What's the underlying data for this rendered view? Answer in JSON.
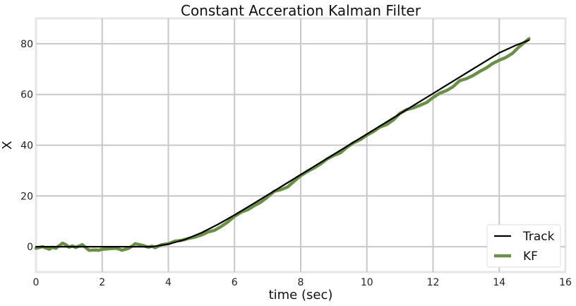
{
  "chart_data": {
    "type": "line",
    "title": "Constant Acceration Kalman Filter",
    "xlabel": "time (sec)",
    "ylabel": "X",
    "xlim": [
      0,
      16
    ],
    "ylim": [
      -10,
      90
    ],
    "xticks": [
      0,
      2,
      4,
      6,
      8,
      10,
      12,
      14,
      16
    ],
    "yticks": [
      0,
      20,
      40,
      60,
      80
    ],
    "xtick_labels": [
      "0",
      "2",
      "4",
      "6",
      "8",
      "10",
      "12",
      "14",
      "16"
    ],
    "ytick_labels": [
      "0",
      "20",
      "40",
      "60",
      "80"
    ],
    "grid": true,
    "legend_placement": "lower-right",
    "series": [
      {
        "name": "Track",
        "color": "#000000",
        "x": [
          0,
          0.5,
          1,
          1.5,
          2,
          2.5,
          3,
          3.5,
          4,
          4.5,
          5,
          5.5,
          6,
          6.5,
          7,
          7.5,
          8,
          8.5,
          9,
          9.5,
          10,
          10.5,
          11,
          11.5,
          12,
          12.5,
          13,
          13.5,
          14,
          14.5,
          14.9
        ],
        "values": [
          0,
          0,
          0,
          0,
          0,
          0,
          0,
          0,
          1,
          2.8,
          5.5,
          8.8,
          12.5,
          16.4,
          20.4,
          24.4,
          28.4,
          32.4,
          36.4,
          40.4,
          44.4,
          48.4,
          52.4,
          56.4,
          60.4,
          64.4,
          68.4,
          72.4,
          76.4,
          79.4,
          81.4
        ]
      },
      {
        "name": "KF",
        "color": "#6a8f47",
        "x": [
          0,
          0.2,
          0.4,
          0.5,
          0.6,
          0.8,
          0.9,
          1.0,
          1.1,
          1.2,
          1.4,
          1.6,
          1.8,
          1.9,
          2.0,
          2.2,
          2.4,
          2.5,
          2.6,
          2.8,
          2.9,
          3.0,
          3.2,
          3.4,
          3.5,
          3.6,
          3.8,
          4.0,
          4.2,
          4.4,
          4.6,
          4.8,
          5.0,
          5.2,
          5.4,
          5.6,
          5.8,
          6.0,
          6.2,
          6.4,
          6.6,
          6.8,
          7.0,
          7.2,
          7.4,
          7.6,
          7.8,
          8.0,
          8.2,
          8.4,
          8.6,
          8.8,
          9.0,
          9.2,
          9.4,
          9.6,
          9.8,
          10.0,
          10.2,
          10.4,
          10.6,
          10.8,
          11.0,
          11.2,
          11.4,
          11.6,
          11.8,
          12.0,
          12.2,
          12.4,
          12.6,
          12.8,
          13.0,
          13.2,
          13.4,
          13.6,
          13.8,
          14.0,
          14.2,
          14.4,
          14.6,
          14.9
        ],
        "values": [
          -0.6,
          0,
          -1.0,
          -0.2,
          -0.6,
          1.4,
          0.8,
          -0.2,
          0.3,
          -0.3,
          0.8,
          -1.4,
          -1.3,
          -1.4,
          -1.0,
          -0.8,
          -0.6,
          -0.9,
          -1.4,
          -0.6,
          0.2,
          1.2,
          0.6,
          -0.2,
          0.2,
          -0.4,
          0.8,
          1.2,
          2.2,
          2.5,
          3.2,
          3.8,
          4.6,
          5.8,
          6.5,
          8.0,
          9.8,
          12.0,
          13.6,
          14.6,
          16.2,
          17.6,
          19.6,
          21.8,
          22.5,
          23.5,
          25.8,
          28.0,
          29.6,
          31.0,
          32.6,
          34.6,
          36.0,
          37.0,
          39.2,
          41.0,
          42.2,
          44.0,
          45.4,
          47.2,
          48.2,
          50.0,
          52.6,
          54.0,
          54.7,
          55.7,
          56.8,
          58.8,
          60.5,
          61.5,
          63.0,
          65.4,
          66.2,
          67.4,
          69.0,
          70.4,
          72.2,
          73.5,
          74.6,
          76.2,
          78.8,
          82.0
        ]
      }
    ]
  }
}
